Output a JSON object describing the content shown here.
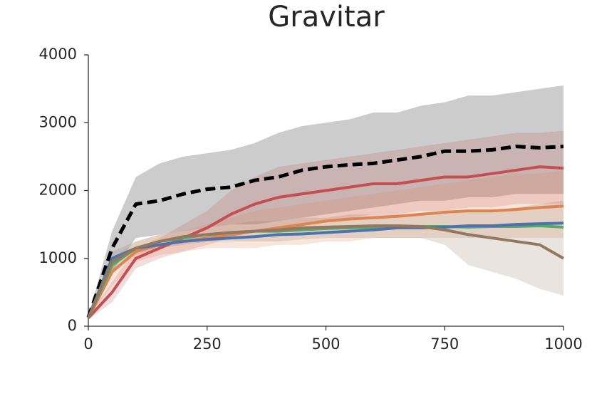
{
  "chart_data": {
    "type": "line",
    "title": "Gravitar",
    "x": [
      0,
      50,
      100,
      150,
      200,
      250,
      300,
      350,
      400,
      450,
      500,
      550,
      600,
      650,
      700,
      750,
      800,
      850,
      900,
      950,
      1000
    ],
    "xlim": [
      0,
      1000
    ],
    "xticks": [
      0,
      250,
      500,
      750,
      1000
    ],
    "ylim": [
      0,
      4000
    ],
    "yticks": [
      0,
      1000,
      2000,
      3000,
      4000
    ],
    "grid": false,
    "series": [
      {
        "color": "#000000",
        "dashed": true,
        "values": [
          130,
          1150,
          1800,
          1850,
          1950,
          2020,
          2050,
          2150,
          2200,
          2300,
          2350,
          2380,
          2400,
          2450,
          2500,
          2580,
          2580,
          2600,
          2650,
          2630,
          2650
        ],
        "lower": [
          100,
          800,
          1300,
          1350,
          1400,
          1450,
          1500,
          1500,
          1550,
          1600,
          1650,
          1700,
          1750,
          1800,
          1850,
          1850,
          1900,
          1900,
          1950,
          1950,
          1950
        ],
        "upper": [
          150,
          1400,
          2200,
          2400,
          2500,
          2550,
          2600,
          2700,
          2850,
          2950,
          3000,
          3050,
          3150,
          3150,
          3250,
          3300,
          3400,
          3400,
          3450,
          3500,
          3550
        ]
      },
      {
        "color": "#c44e52",
        "dashed": false,
        "values": [
          120,
          500,
          1000,
          1150,
          1300,
          1450,
          1650,
          1800,
          1900,
          1950,
          2000,
          2050,
          2100,
          2100,
          2150,
          2200,
          2200,
          2250,
          2300,
          2350,
          2330
        ],
        "lower": [
          100,
          350,
          850,
          1000,
          1100,
          1200,
          1300,
          1400,
          1450,
          1500,
          1550,
          1600,
          1650,
          1650,
          1700,
          1700,
          1750,
          1750,
          1800,
          1800,
          1800
        ],
        "upper": [
          150,
          650,
          1150,
          1300,
          1500,
          1700,
          2000,
          2200,
          2350,
          2400,
          2450,
          2500,
          2550,
          2600,
          2650,
          2700,
          2750,
          2800,
          2850,
          2850,
          2880
        ]
      },
      {
        "color": "#dd8452",
        "dashed": false,
        "values": [
          120,
          800,
          1100,
          1200,
          1250,
          1300,
          1350,
          1400,
          1450,
          1500,
          1550,
          1580,
          1600,
          1620,
          1650,
          1680,
          1700,
          1700,
          1720,
          1750,
          1770
        ],
        "lower": [
          100,
          600,
          950,
          1050,
          1100,
          1150,
          1150,
          1150,
          1200,
          1200,
          1250,
          1250,
          1300,
          1300,
          1300,
          1300,
          1300,
          1300,
          1300,
          1300,
          1300
        ],
        "upper": [
          150,
          1000,
          1250,
          1350,
          1400,
          1500,
          1600,
          1700,
          1750,
          1800,
          1850,
          1900,
          1950,
          2000,
          2050,
          2100,
          2150,
          2200,
          2250,
          2250,
          2300
        ]
      },
      {
        "color": "#55a868",
        "dashed": false,
        "values": [
          120,
          900,
          1150,
          1250,
          1300,
          1350,
          1380,
          1400,
          1400,
          1420,
          1440,
          1450,
          1460,
          1470,
          1470,
          1470,
          1460,
          1470,
          1470,
          1480,
          1460
        ]
      },
      {
        "color": "#4c72b0",
        "dashed": false,
        "values": [
          120,
          1000,
          1150,
          1200,
          1250,
          1280,
          1300,
          1320,
          1350,
          1360,
          1380,
          1400,
          1420,
          1450,
          1450,
          1460,
          1480,
          1480,
          1500,
          1510,
          1520
        ]
      },
      {
        "color": "#937860",
        "dashed": false,
        "values": [
          120,
          950,
          1150,
          1250,
          1320,
          1350,
          1380,
          1400,
          1420,
          1450,
          1460,
          1470,
          1480,
          1480,
          1470,
          1420,
          1350,
          1300,
          1250,
          1200,
          1000
        ],
        "lower": [
          100,
          800,
          1050,
          1150,
          1200,
          1250,
          1250,
          1250,
          1250,
          1280,
          1300,
          1300,
          1300,
          1300,
          1300,
          1200,
          900,
          800,
          700,
          550,
          450
        ],
        "upper": [
          150,
          1100,
          1250,
          1350,
          1400,
          1450,
          1500,
          1550,
          1550,
          1600,
          1600,
          1650,
          1650,
          1650,
          1650,
          1650,
          1700,
          1700,
          1750,
          1800,
          1850
        ]
      }
    ]
  }
}
